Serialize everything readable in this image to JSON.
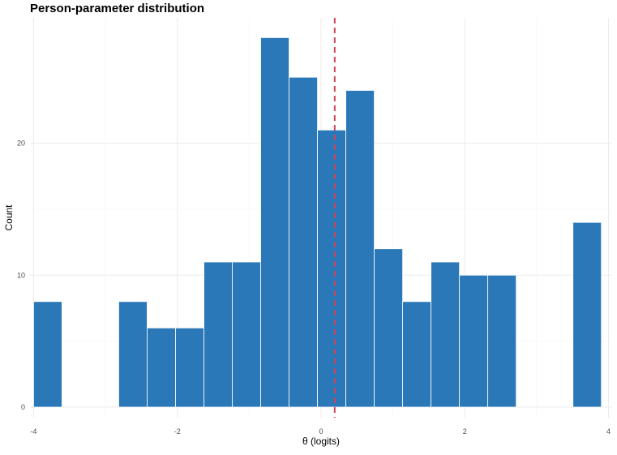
{
  "chart_data": {
    "type": "bar",
    "title": "Person-parameter distribution",
    "xlabel": "θ (logits)",
    "ylabel": "Count",
    "xlim": [
      -4.05,
      4.05
    ],
    "ylim": [
      -0.8,
      29.5
    ],
    "x_ticks": [
      -4,
      -2,
      0,
      2,
      4
    ],
    "y_ticks": [
      0,
      10,
      20
    ],
    "bin_width": 0.395,
    "bins": [
      {
        "x0": -4.0,
        "x1": -3.605,
        "count": 8
      },
      {
        "x0": -3.605,
        "x1": -3.21,
        "count": 0
      },
      {
        "x0": -3.21,
        "x1": -2.815,
        "count": 0
      },
      {
        "x0": -2.815,
        "x1": -2.42,
        "count": 8
      },
      {
        "x0": -2.42,
        "x1": -2.025,
        "count": 6
      },
      {
        "x0": -2.025,
        "x1": -1.63,
        "count": 6
      },
      {
        "x0": -1.63,
        "x1": -1.235,
        "count": 11
      },
      {
        "x0": -1.235,
        "x1": -0.84,
        "count": 11
      },
      {
        "x0": -0.84,
        "x1": -0.445,
        "count": 28
      },
      {
        "x0": -0.445,
        "x1": -0.05,
        "count": 25
      },
      {
        "x0": -0.05,
        "x1": 0.345,
        "count": 21
      },
      {
        "x0": 0.345,
        "x1": 0.74,
        "count": 24
      },
      {
        "x0": 0.74,
        "x1": 1.135,
        "count": 12
      },
      {
        "x0": 1.135,
        "x1": 1.53,
        "count": 8
      },
      {
        "x0": 1.53,
        "x1": 1.925,
        "count": 11
      },
      {
        "x0": 1.925,
        "x1": 2.32,
        "count": 10
      },
      {
        "x0": 2.32,
        "x1": 2.715,
        "count": 10
      },
      {
        "x0": 2.715,
        "x1": 3.11,
        "count": 0
      },
      {
        "x0": 3.11,
        "x1": 3.505,
        "count": 0
      },
      {
        "x0": 3.505,
        "x1": 3.9,
        "count": 14
      }
    ],
    "reference_line": {
      "x": 0.19,
      "style": "dashed"
    },
    "grid": true,
    "legend": "none"
  },
  "colors": {
    "bar_fill": "#2a78b8",
    "bar_stroke": "#ffffff",
    "reference_line": "#d0455a",
    "grid": "#ebebeb"
  }
}
